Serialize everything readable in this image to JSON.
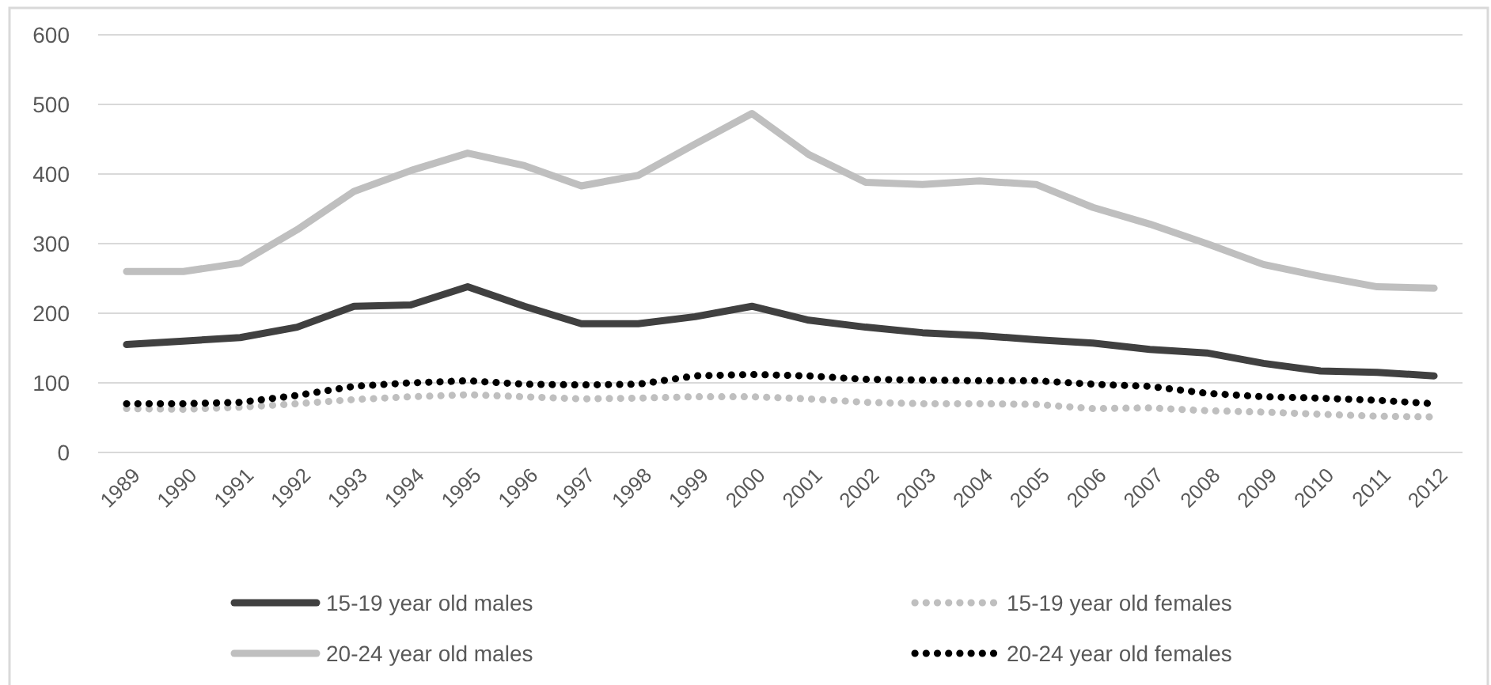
{
  "chart_data": {
    "type": "line",
    "categories": [
      "1989",
      "1990",
      "1991",
      "1992",
      "1993",
      "1994",
      "1995",
      "1996",
      "1997",
      "1998",
      "1999",
      "2000",
      "2001",
      "2002",
      "2003",
      "2004",
      "2005",
      "2006",
      "2007",
      "2008",
      "2009",
      "2010",
      "2011",
      "2012"
    ],
    "series": [
      {
        "name": "15-19 year old males",
        "color": "#404040",
        "line_style": "solid",
        "values": [
          155,
          160,
          165,
          180,
          210,
          212,
          238,
          210,
          185,
          185,
          195,
          210,
          190,
          180,
          172,
          168,
          162,
          157,
          148,
          143,
          128,
          117,
          115,
          110
        ]
      },
      {
        "name": "15-19 year old females",
        "color": "#bfbfbf",
        "line_style": "dotted",
        "values": [
          63,
          62,
          65,
          70,
          76,
          80,
          83,
          80,
          77,
          78,
          80,
          80,
          77,
          72,
          70,
          70,
          69,
          63,
          64,
          60,
          58,
          55,
          52,
          51
        ]
      },
      {
        "name": "20-24 year old males",
        "color": "#bfbfbf",
        "line_style": "solid",
        "values": [
          260,
          260,
          272,
          320,
          375,
          405,
          430,
          412,
          383,
          398,
          443,
          487,
          428,
          388,
          385,
          390,
          385,
          352,
          328,
          300,
          270,
          253,
          238,
          236
        ]
      },
      {
        "name": "20-24 year old females",
        "color": "#000000",
        "line_style": "dotted",
        "values": [
          70,
          70,
          72,
          82,
          95,
          100,
          103,
          98,
          97,
          98,
          110,
          112,
          110,
          105,
          104,
          103,
          103,
          98,
          95,
          85,
          80,
          78,
          75,
          70
        ]
      }
    ],
    "ylim": [
      0,
      600
    ],
    "yticks": [
      0,
      100,
      200,
      300,
      400,
      500,
      600
    ],
    "grid": "y",
    "legend": "bottom",
    "marker": "none"
  }
}
